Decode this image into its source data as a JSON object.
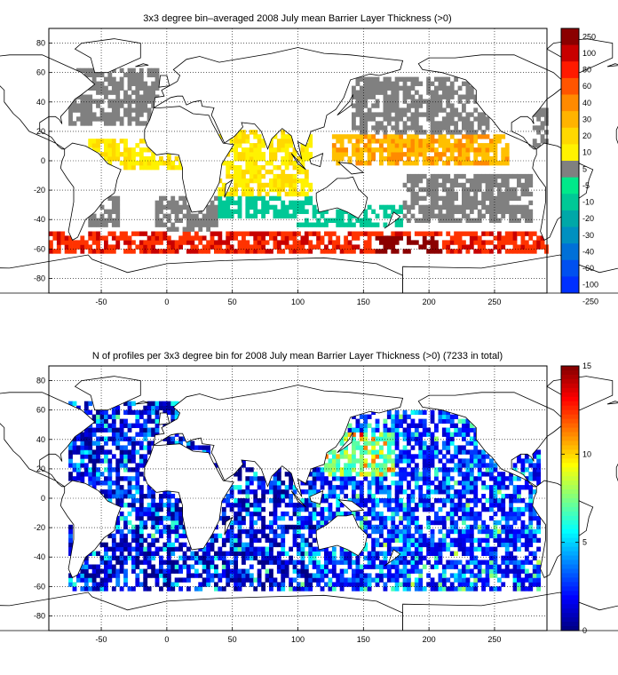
{
  "panels": [
    {
      "id": "top",
      "title": "3x3 degree bin–averaged 2008 July mean Barrier Layer Thickness (>0)",
      "x_ticks": [
        -50,
        0,
        50,
        100,
        150,
        200,
        250
      ],
      "y_ticks": [
        80,
        60,
        40,
        20,
        0,
        -20,
        -40,
        -60,
        -80
      ],
      "colorbar": {
        "type": "discrete",
        "labels": [
          "250",
          "100",
          "80",
          "60",
          "40",
          "30",
          "20",
          "10",
          "5",
          "-5",
          "-10",
          "-20",
          "-30",
          "-40",
          "-60",
          "-100",
          "-250"
        ],
        "colors": [
          "#8b0000",
          "#c80000",
          "#ff1a00",
          "#ff5500",
          "#ff8a00",
          "#ffb300",
          "#ffd800",
          "#fff200",
          "#808080",
          "#00e98a",
          "#00c896",
          "#00a8a8",
          "#0090c0",
          "#0070d8",
          "#0050f0",
          "#0030ff"
        ]
      }
    },
    {
      "id": "bottom",
      "title": "N of profiles per 3x3 degree bin for 2008 July mean Barrier Layer Thickness (>0) (7233 in total)",
      "x_ticks": [
        -50,
        0,
        50,
        100,
        150,
        200,
        250
      ],
      "y_ticks": [
        80,
        60,
        40,
        20,
        0,
        -20,
        -40,
        -60,
        -80
      ],
      "colorbar": {
        "type": "jet",
        "min": 0,
        "max": 15,
        "labels": [
          "15",
          "10",
          "5",
          "0"
        ],
        "label_values": [
          15,
          10,
          5,
          0
        ]
      }
    }
  ],
  "chart_data": [
    {
      "type": "heatmap",
      "title": "3x3 degree bin–averaged 2008 July mean Barrier Layer Thickness (>0)",
      "xlim": [
        -90,
        290
      ],
      "ylim": [
        -90,
        90
      ],
      "bin_size_deg": 3,
      "grid": true,
      "colorbar_levels": [
        -250,
        -100,
        -60,
        -40,
        -30,
        -20,
        -10,
        -5,
        5,
        10,
        20,
        30,
        40,
        60,
        80,
        100,
        250
      ],
      "regions": [
        {
          "lon": [
            -75,
            -5
          ],
          "lat": [
            25,
            62
          ],
          "category": "5"
        },
        {
          "lon": [
            -10,
            40
          ],
          "lat": [
            -58,
            -25
          ],
          "category": "5"
        },
        {
          "lon": [
            -60,
            -35
          ],
          "lat": [
            -45,
            -25
          ],
          "category": "5"
        },
        {
          "lon": [
            140,
            245
          ],
          "lat": [
            18,
            58
          ],
          "category": "5"
        },
        {
          "lon": [
            180,
            280
          ],
          "lat": [
            -42,
            -8
          ],
          "category": "5"
        },
        {
          "lon": [
            280,
            290
          ],
          "lat": [
            10,
            40
          ],
          "category": "5"
        },
        {
          "lon": [
            -60,
            40
          ],
          "lat": [
            -6,
            14
          ],
          "category": "10"
        },
        {
          "lon": [
            40,
            110
          ],
          "lat": [
            -30,
            22
          ],
          "category": "10"
        },
        {
          "lon": [
            125,
            260
          ],
          "lat": [
            -2,
            18
          ],
          "category": "20"
        },
        {
          "lon": [
            40,
            110
          ],
          "lat": [
            -40,
            -25
          ],
          "category": "-10"
        },
        {
          "lon": [
            100,
            180
          ],
          "lat": [
            -44,
            -30
          ],
          "category": "-10"
        },
        {
          "lon": [
            -90,
            290
          ],
          "lat": [
            -62,
            -48
          ],
          "category": "60"
        },
        {
          "lon": [
            160,
            210
          ],
          "lat": [
            -64,
            -52
          ],
          "category": "250"
        }
      ]
    },
    {
      "type": "heatmap",
      "title": "N of profiles per 3x3 degree bin for 2008 July mean Barrier Layer Thickness (>0) (7233 in total)",
      "total_profiles": 7233,
      "xlim": [
        -90,
        290
      ],
      "ylim": [
        -90,
        90
      ],
      "bin_size_deg": 3,
      "grid": true,
      "colorbar_range": [
        0,
        15
      ],
      "regions": [
        {
          "lon": [
            -75,
            40
          ],
          "lat": [
            -62,
            65
          ],
          "typical_count": 1
        },
        {
          "lon": [
            40,
            115
          ],
          "lat": [
            -62,
            30
          ],
          "typical_count": 1
        },
        {
          "lon": [
            115,
            285
          ],
          "lat": [
            -62,
            60
          ],
          "typical_count": 2
        },
        {
          "lon": [
            120,
            175
          ],
          "lat": [
            15,
            45
          ],
          "typical_count": 7
        }
      ]
    }
  ]
}
